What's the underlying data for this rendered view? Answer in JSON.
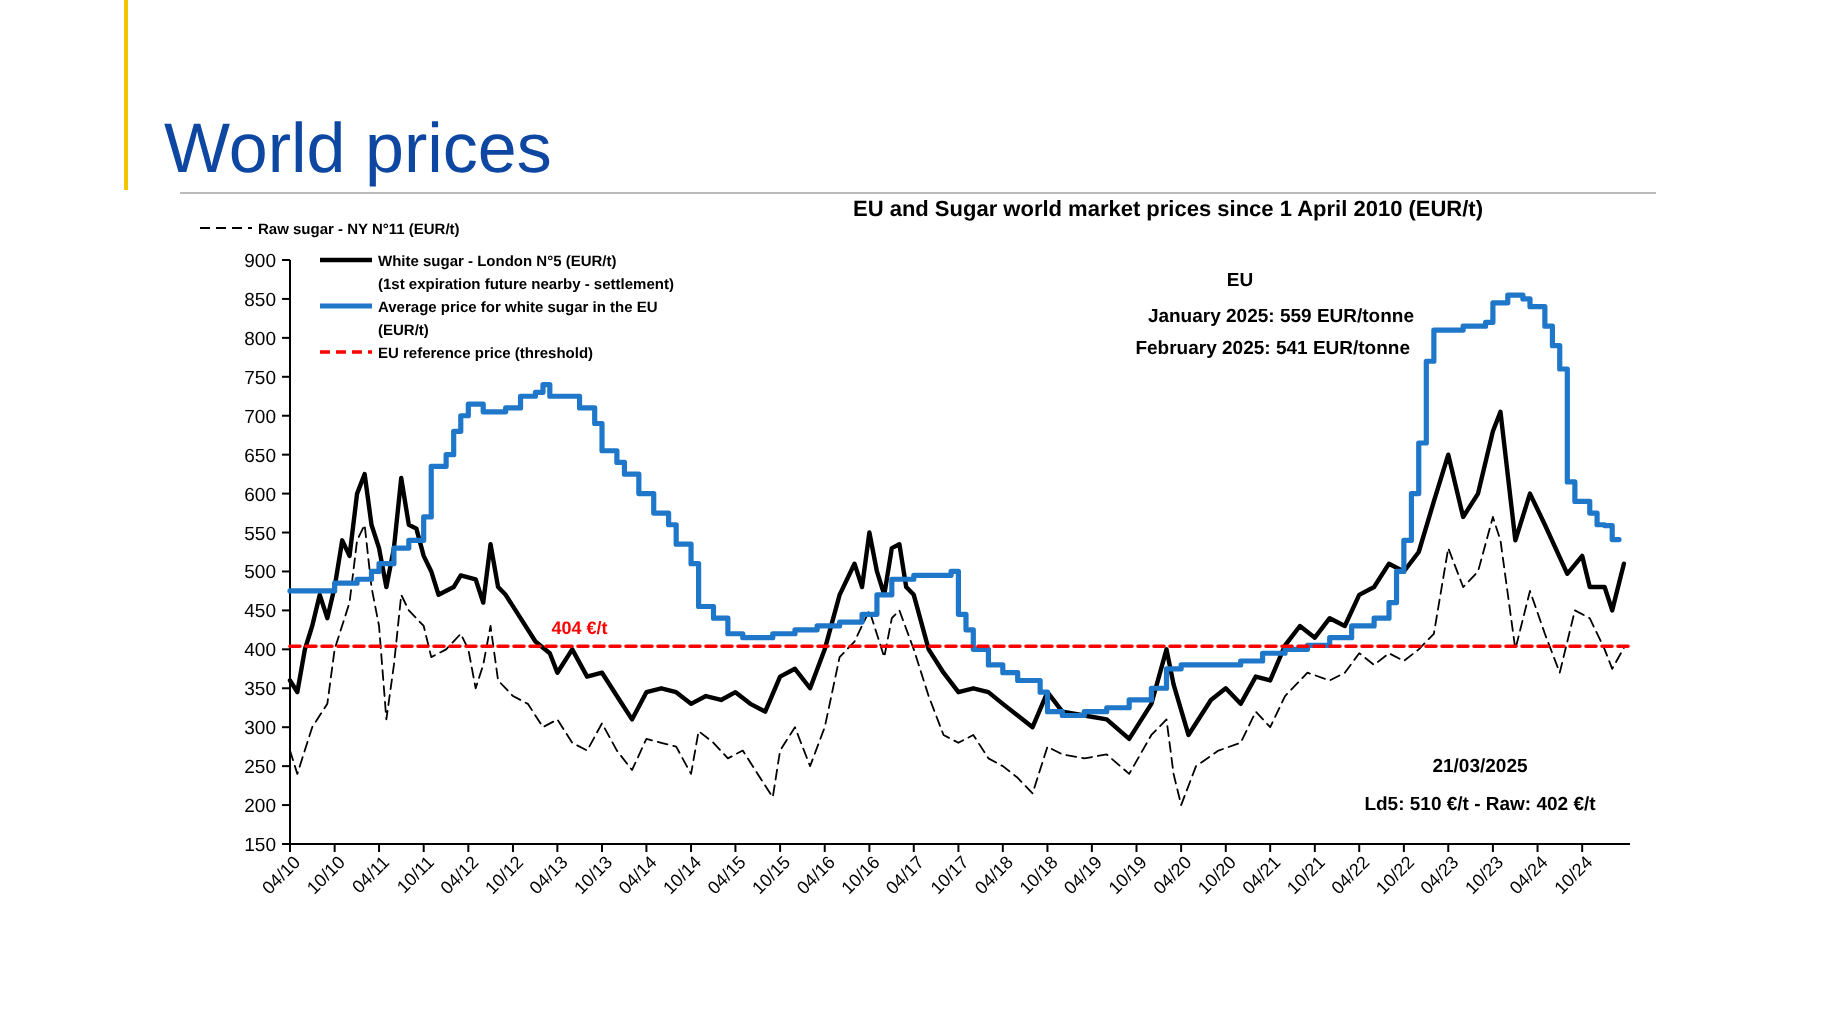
{
  "chart_data": {
    "type": "line",
    "title": "World prices",
    "subtitle": "EU and Sugar world market prices since 1 April 2010 (EUR/t)",
    "xlim": [
      "2010-04-01",
      "2025-04-15"
    ],
    "xticks": [
      {
        "value": "2010-04-01",
        "label": "04/10"
      },
      {
        "value": "2010-10-01",
        "label": "10/10"
      },
      {
        "value": "2011-04-01",
        "label": "04/11"
      },
      {
        "value": "2011-10-01",
        "label": "10/11"
      },
      {
        "value": "2012-04-01",
        "label": "04/12"
      },
      {
        "value": "2012-10-01",
        "label": "10/12"
      },
      {
        "value": "2013-04-01",
        "label": "04/13"
      },
      {
        "value": "2013-10-01",
        "label": "10/13"
      },
      {
        "value": "2014-04-01",
        "label": "04/14"
      },
      {
        "value": "2014-10-01",
        "label": "10/14"
      },
      {
        "value": "2015-04-01",
        "label": "04/15"
      },
      {
        "value": "2015-10-01",
        "label": "10/15"
      },
      {
        "value": "2016-04-01",
        "label": "04/16"
      },
      {
        "value": "2016-10-01",
        "label": "10/16"
      },
      {
        "value": "2017-04-01",
        "label": "04/17"
      },
      {
        "value": "2017-10-01",
        "label": "10/17"
      },
      {
        "value": "2018-04-01",
        "label": "04/18"
      },
      {
        "value": "2018-10-01",
        "label": "10/18"
      },
      {
        "value": "2019-04-01",
        "label": "04/19"
      },
      {
        "value": "2019-10-01",
        "label": "10/19"
      },
      {
        "value": "2020-04-01",
        "label": "04/20"
      },
      {
        "value": "2020-10-01",
        "label": "10/20"
      },
      {
        "value": "2021-04-01",
        "label": "04/21"
      },
      {
        "value": "2021-10-01",
        "label": "10/21"
      },
      {
        "value": "2022-04-01",
        "label": "04/22"
      },
      {
        "value": "2022-10-01",
        "label": "10/22"
      },
      {
        "value": "2023-04-01",
        "label": "04/23"
      },
      {
        "value": "2023-10-01",
        "label": "10/23"
      },
      {
        "value": "2024-04-01",
        "label": "04/24"
      },
      {
        "value": "2024-10-01",
        "label": "10/24"
      }
    ],
    "ylim": [
      150,
      900
    ],
    "yticks": [
      150,
      200,
      250,
      300,
      350,
      400,
      450,
      500,
      550,
      600,
      650,
      700,
      750,
      800,
      850,
      900
    ],
    "grid": false,
    "legend": "top left",
    "marker": "none",
    "series": [
      {
        "name": "Raw sugar - NY N°11 (EUR/t)",
        "color": "#000000",
        "line_style": "dashed",
        "x": [
          "2010-04",
          "2010-05",
          "2010-07",
          "2010-09",
          "2010-10",
          "2010-12",
          "2011-01",
          "2011-02",
          "2011-03",
          "2011-04",
          "2011-05",
          "2011-06",
          "2011-07",
          "2011-08",
          "2011-10",
          "2011-11",
          "2012-01",
          "2012-03",
          "2012-04",
          "2012-05",
          "2012-06",
          "2012-07",
          "2012-08",
          "2012-10",
          "2012-12",
          "2013-02",
          "2013-04",
          "2013-06",
          "2013-08",
          "2013-10",
          "2013-12",
          "2014-02",
          "2014-04",
          "2014-06",
          "2014-08",
          "2014-10",
          "2014-11",
          "2015-01",
          "2015-03",
          "2015-05",
          "2015-07",
          "2015-09",
          "2015-10",
          "2015-12",
          "2016-02",
          "2016-04",
          "2016-06",
          "2016-08",
          "2016-10",
          "2016-12",
          "2017-01",
          "2017-02",
          "2017-04",
          "2017-06",
          "2017-08",
          "2017-10",
          "2017-12",
          "2018-02",
          "2018-04",
          "2018-06",
          "2018-08",
          "2018-10",
          "2018-12",
          "2019-03",
          "2019-06",
          "2019-09",
          "2019-12",
          "2020-02",
          "2020-03",
          "2020-04",
          "2020-06",
          "2020-09",
          "2020-12",
          "2021-02",
          "2021-04",
          "2021-06",
          "2021-09",
          "2021-12",
          "2022-02",
          "2022-04",
          "2022-06",
          "2022-08",
          "2022-10",
          "2022-12",
          "2023-02",
          "2023-04",
          "2023-06",
          "2023-08",
          "2023-10",
          "2023-11",
          "2024-01",
          "2024-03",
          "2024-05",
          "2024-07",
          "2024-09",
          "2024-11",
          "2025-01",
          "2025-02",
          "2025-03-21"
        ],
        "values": [
          270,
          240,
          300,
          330,
          400,
          460,
          540,
          560,
          480,
          430,
          310,
          380,
          470,
          450,
          430,
          390,
          400,
          420,
          400,
          350,
          380,
          430,
          360,
          340,
          330,
          300,
          310,
          280,
          270,
          305,
          270,
          245,
          285,
          280,
          275,
          240,
          295,
          280,
          260,
          270,
          240,
          210,
          270,
          300,
          250,
          300,
          390,
          410,
          450,
          390,
          440,
          450,
          400,
          340,
          290,
          280,
          290,
          260,
          250,
          235,
          215,
          275,
          265,
          260,
          265,
          240,
          290,
          310,
          240,
          200,
          250,
          270,
          280,
          320,
          300,
          340,
          370,
          360,
          370,
          395,
          380,
          395,
          385,
          400,
          420,
          530,
          480,
          500,
          570,
          540,
          400,
          475,
          420,
          370,
          450,
          440,
          400,
          375,
          402
        ]
      },
      {
        "name": "White sugar - London N°5 (EUR/t)\n(1st expiration future nearby - settlement)",
        "color": "#000000",
        "line_style": "solid",
        "x": [
          "2010-04",
          "2010-05",
          "2010-06",
          "2010-07",
          "2010-08",
          "2010-09",
          "2010-10",
          "2010-11",
          "2010-12",
          "2011-01",
          "2011-02",
          "2011-03",
          "2011-04",
          "2011-05",
          "2011-06",
          "2011-07",
          "2011-08",
          "2011-09",
          "2011-10",
          "2011-11",
          "2011-12",
          "2012-02",
          "2012-03",
          "2012-05",
          "2012-06",
          "2012-07",
          "2012-08",
          "2012-09",
          "2012-11",
          "2013-01",
          "2013-03",
          "2013-04",
          "2013-06",
          "2013-08",
          "2013-10",
          "2013-12",
          "2014-02",
          "2014-04",
          "2014-06",
          "2014-08",
          "2014-10",
          "2014-12",
          "2015-02",
          "2015-04",
          "2015-06",
          "2015-08",
          "2015-10",
          "2015-12",
          "2016-02",
          "2016-04",
          "2016-06",
          "2016-08",
          "2016-09",
          "2016-10",
          "2016-11",
          "2016-12",
          "2017-01",
          "2017-02",
          "2017-03",
          "2017-04",
          "2017-06",
          "2017-08",
          "2017-10",
          "2017-12",
          "2018-02",
          "2018-04",
          "2018-06",
          "2018-08",
          "2018-10",
          "2018-12",
          "2019-03",
          "2019-06",
          "2019-09",
          "2019-12",
          "2020-02",
          "2020-03",
          "2020-05",
          "2020-08",
          "2020-10",
          "2020-12",
          "2021-02",
          "2021-04",
          "2021-06",
          "2021-08",
          "2021-10",
          "2021-12",
          "2022-02",
          "2022-04",
          "2022-06",
          "2022-08",
          "2022-10",
          "2022-12",
          "2023-02",
          "2023-04",
          "2023-06",
          "2023-08",
          "2023-10",
          "2023-11",
          "2024-01",
          "2024-03",
          "2024-05",
          "2024-08",
          "2024-10",
          "2024-11",
          "2025-01",
          "2025-02",
          "2025-03-21"
        ],
        "values": [
          360,
          345,
          400,
          430,
          470,
          440,
          480,
          540,
          520,
          600,
          625,
          560,
          530,
          480,
          530,
          620,
          560,
          555,
          520,
          500,
          470,
          480,
          495,
          490,
          460,
          535,
          480,
          470,
          440,
          410,
          395,
          370,
          400,
          365,
          370,
          340,
          310,
          345,
          350,
          345,
          330,
          340,
          335,
          345,
          330,
          320,
          365,
          375,
          350,
          400,
          470,
          510,
          480,
          550,
          500,
          470,
          530,
          535,
          480,
          470,
          400,
          370,
          345,
          350,
          345,
          330,
          315,
          300,
          345,
          320,
          315,
          310,
          285,
          330,
          400,
          355,
          290,
          335,
          350,
          330,
          365,
          360,
          405,
          430,
          415,
          440,
          430,
          470,
          480,
          510,
          500,
          525,
          590,
          650,
          570,
          600,
          680,
          705,
          540,
          600,
          560,
          497,
          520,
          480,
          480,
          450,
          510
        ]
      },
      {
        "name": "Average price for white sugar in the EU\n(EUR/t)",
        "color": "#1f77c9",
        "type": "step",
        "line_style": "solid",
        "x": [
          "2010-04",
          "2010-10",
          "2011-01",
          "2011-03",
          "2011-04",
          "2011-06",
          "2011-08",
          "2011-10",
          "2011-11",
          "2012-01",
          "2012-02",
          "2012-03",
          "2012-04",
          "2012-06",
          "2012-09",
          "2012-11",
          "2013-01",
          "2013-02",
          "2013-03",
          "2013-05",
          "2013-07",
          "2013-09",
          "2013-10",
          "2013-12",
          "2014-01",
          "2014-03",
          "2014-05",
          "2014-07",
          "2014-08",
          "2014-10",
          "2014-11",
          "2015-01",
          "2015-03",
          "2015-05",
          "2015-09",
          "2015-12",
          "2016-03",
          "2016-06",
          "2016-09",
          "2016-11",
          "2017-01",
          "2017-04",
          "2017-09",
          "2017-10",
          "2017-11",
          "2017-12",
          "2018-02",
          "2018-04",
          "2018-06",
          "2018-09",
          "2018-10",
          "2018-12",
          "2019-03",
          "2019-06",
          "2019-09",
          "2019-12",
          "2020-02",
          "2020-04",
          "2020-08",
          "2020-12",
          "2021-03",
          "2021-06",
          "2021-09",
          "2021-12",
          "2022-03",
          "2022-06",
          "2022-08",
          "2022-09",
          "2022-10",
          "2022-11",
          "2022-12",
          "2023-01",
          "2023-02",
          "2023-06",
          "2023-09",
          "2023-10",
          "2023-12",
          "2024-02",
          "2024-03",
          "2024-05",
          "2024-06",
          "2024-07",
          "2024-08",
          "2024-09",
          "2024-11",
          "2024-12",
          "2025-01",
          "2025-02",
          "2025-03-01"
        ],
        "values": [
          475,
          485,
          490,
          500,
          510,
          530,
          540,
          570,
          635,
          650,
          680,
          700,
          715,
          705,
          710,
          725,
          730,
          740,
          725,
          725,
          710,
          690,
          655,
          640,
          625,
          600,
          575,
          560,
          535,
          510,
          455,
          440,
          420,
          415,
          420,
          425,
          430,
          435,
          445,
          470,
          490,
          495,
          500,
          445,
          425,
          400,
          380,
          370,
          360,
          345,
          320,
          315,
          320,
          325,
          335,
          350,
          375,
          380,
          380,
          385,
          395,
          400,
          405,
          415,
          430,
          440,
          460,
          500,
          540,
          600,
          665,
          770,
          810,
          815,
          820,
          845,
          855,
          850,
          840,
          815,
          790,
          760,
          615,
          590,
          575,
          560,
          559,
          541,
          541
        ]
      },
      {
        "name": "EU reference price  (threshold)",
        "color": "#ff0000",
        "type": "line",
        "line_style": "dashed",
        "x": [
          "2010-04-01",
          "2025-04-15"
        ],
        "values": [
          404,
          404
        ]
      }
    ],
    "annotations": [
      {
        "text": "404 €/t",
        "x": "2013-07",
        "y": 404
      },
      "EU",
      "January 2025: 559 EUR/tonne",
      "February 2025: 541 EUR/tonne",
      "21/03/2025",
      "Ld5: 510 €/t - Raw: 402 €/t"
    ]
  }
}
